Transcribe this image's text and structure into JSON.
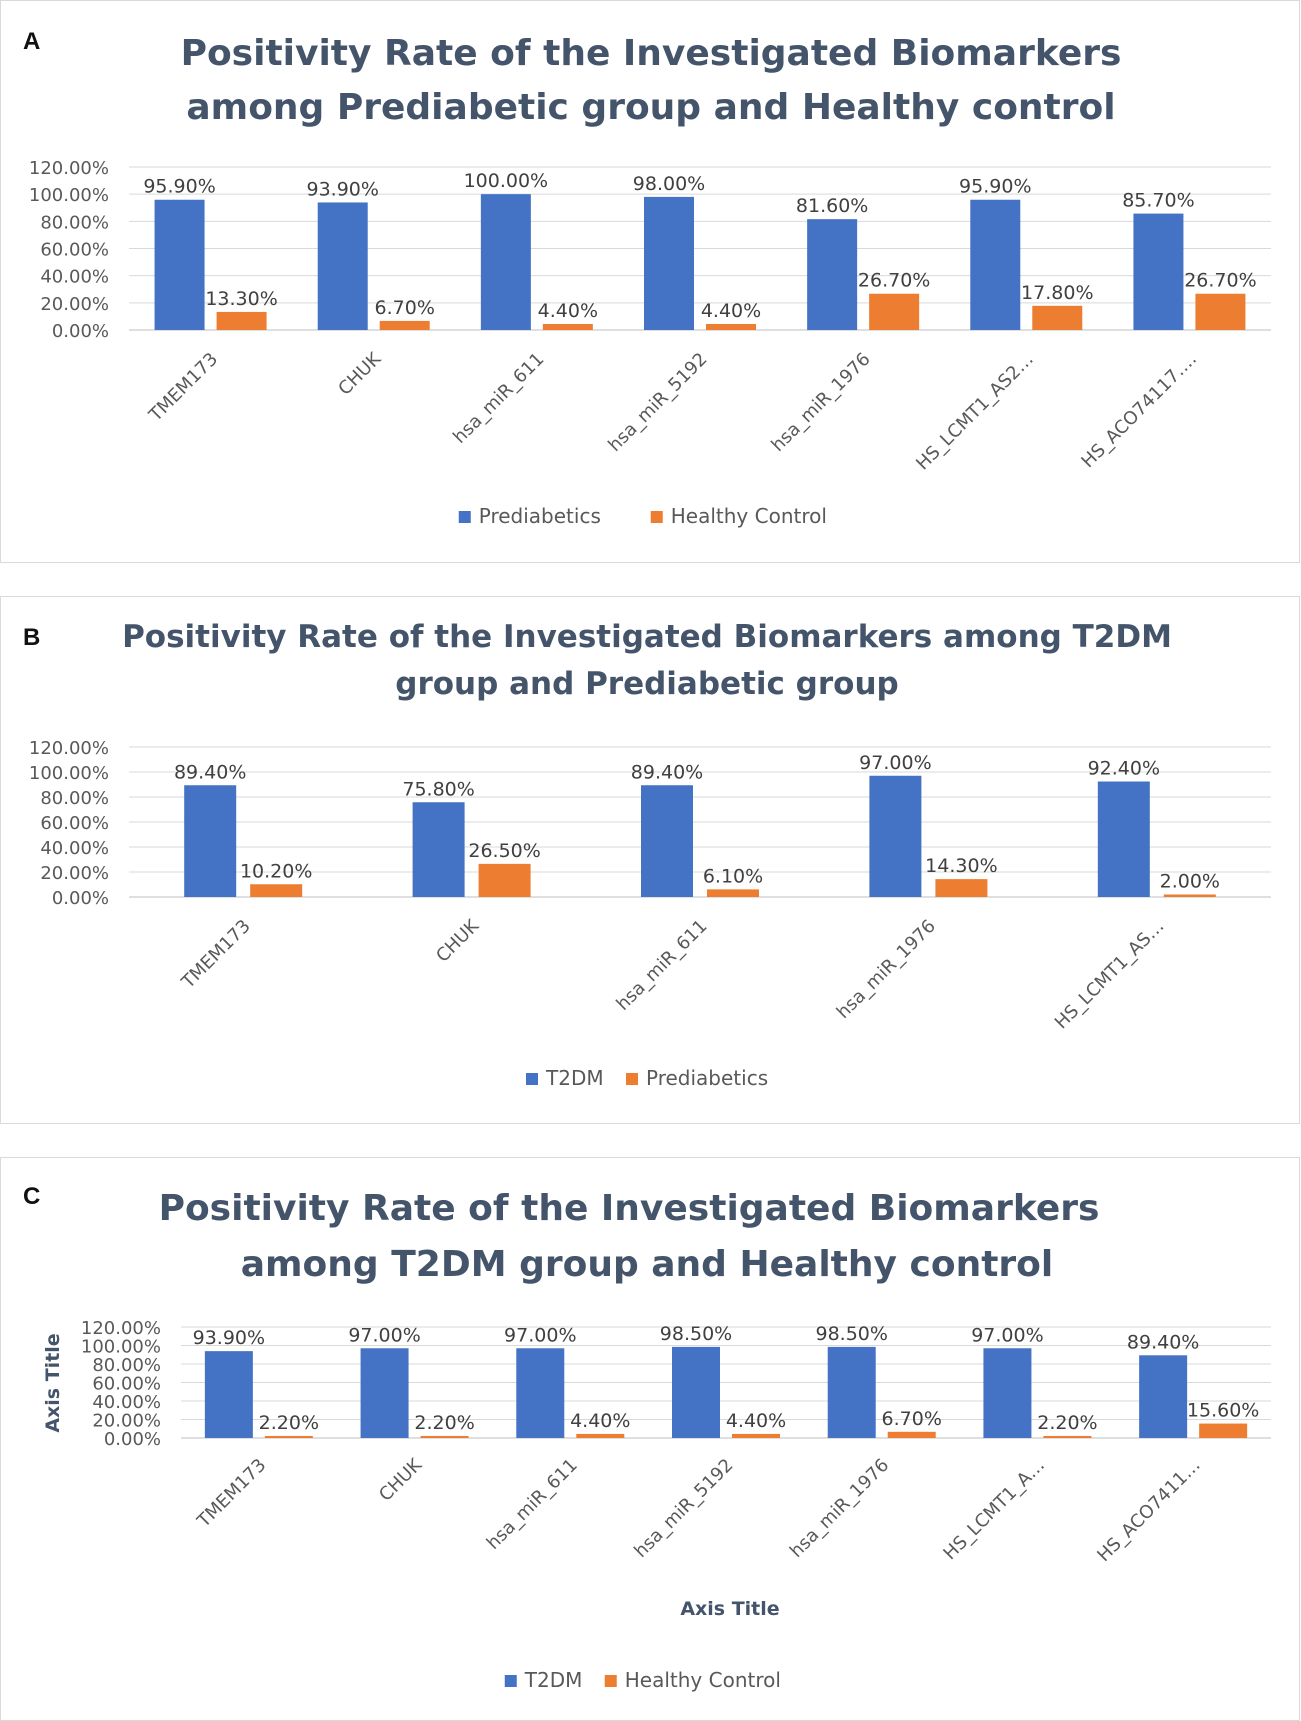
{
  "chart_data": [
    {
      "panel_label": "A",
      "type": "bar",
      "title_lines": [
        "Positivity Rate of the Investigated Biomarkers",
        "among Prediabetic group and Healthy control"
      ],
      "categories": [
        "TMEM173",
        "CHUK",
        "hsa_miR_611",
        "hsa_miR_5192",
        "hsa_miR_1976",
        "HS_LCMT1_AS2…",
        "HS_ACO74117…."
      ],
      "series": [
        {
          "name": "Prediabetics",
          "color": "#4472c4",
          "values": [
            95.9,
            93.9,
            100.0,
            98.0,
            81.6,
            95.9,
            85.7
          ],
          "labels": [
            "95.90%",
            "93.90%",
            "100.00%",
            "98.00%",
            "81.60%",
            "95.90%",
            "85.70%"
          ]
        },
        {
          "name": "Healthy Control",
          "color": "#ed7d31",
          "values": [
            13.3,
            6.7,
            4.4,
            4.4,
            26.7,
            17.8,
            26.7
          ],
          "labels": [
            "13.30%",
            "6.70%",
            "4.40%",
            "4.40%",
            "26.70%",
            "17.80%",
            "26.70%"
          ]
        }
      ],
      "ylim": [
        0,
        120
      ],
      "yticks": [
        "0.00%",
        "20.00%",
        "40.00%",
        "60.00%",
        "80.00%",
        "100.00%",
        "120.00%"
      ],
      "xlabel": "",
      "ylabel": "",
      "legend": "bottom",
      "grid": true
    },
    {
      "panel_label": "B",
      "type": "bar",
      "title_lines": [
        "Positivity Rate of the Investigated Biomarkers among T2DM",
        "group and Prediabetic group"
      ],
      "categories": [
        "TMEM173",
        "CHUK",
        "hsa_miR_611",
        "hsa_miR_1976",
        "HS_LCMT1_AS…"
      ],
      "series": [
        {
          "name": "T2DM",
          "color": "#4472c4",
          "values": [
            89.4,
            75.8,
            89.4,
            97.0,
            92.4
          ],
          "labels": [
            "89.40%",
            "75.80%",
            "89.40%",
            "97.00%",
            "92.40%"
          ]
        },
        {
          "name": "Prediabetics",
          "color": "#ed7d31",
          "values": [
            10.2,
            26.5,
            6.1,
            14.3,
            2.0
          ],
          "labels": [
            "10.20%",
            "26.50%",
            "6.10%",
            "14.30%",
            "2.00%"
          ]
        }
      ],
      "ylim": [
        0,
        120
      ],
      "yticks": [
        "0.00%",
        "20.00%",
        "40.00%",
        "60.00%",
        "80.00%",
        "100.00%",
        "120.00%"
      ],
      "xlabel": "",
      "ylabel": "",
      "legend": "bottom",
      "grid": true
    },
    {
      "panel_label": "C",
      "type": "bar",
      "title_lines": [
        "Positivity Rate of the Investigated Biomarkers",
        "among T2DM group and Healthy control"
      ],
      "categories": [
        "TMEM173",
        "CHUK",
        "hsa_miR_611",
        "hsa_miR_5192",
        "hsa_miR_1976",
        "HS_LCMT1_A…",
        "HS_ACO7411…"
      ],
      "series": [
        {
          "name": "T2DM",
          "color": "#4472c4",
          "values": [
            93.9,
            97.0,
            97.0,
            98.5,
            98.5,
            97.0,
            89.4
          ],
          "labels": [
            "93.90%",
            "97.00%",
            "97.00%",
            "98.50%",
            "98.50%",
            "97.00%",
            "89.40%"
          ]
        },
        {
          "name": "Healthy Control",
          "color": "#ed7d31",
          "values": [
            2.2,
            2.2,
            4.4,
            4.4,
            6.7,
            2.2,
            15.6
          ],
          "labels": [
            "2.20%",
            "2.20%",
            "4.40%",
            "4.40%",
            "6.70%",
            "2.20%",
            "15.60%"
          ]
        }
      ],
      "ylim": [
        0,
        120
      ],
      "yticks": [
        "0.00%",
        "20.00%",
        "40.00%",
        "60.00%",
        "80.00%",
        "100.00%",
        "120.00%"
      ],
      "xlabel": "Axis Title",
      "ylabel": "Axis Title",
      "legend": "bottom",
      "grid": true
    }
  ]
}
